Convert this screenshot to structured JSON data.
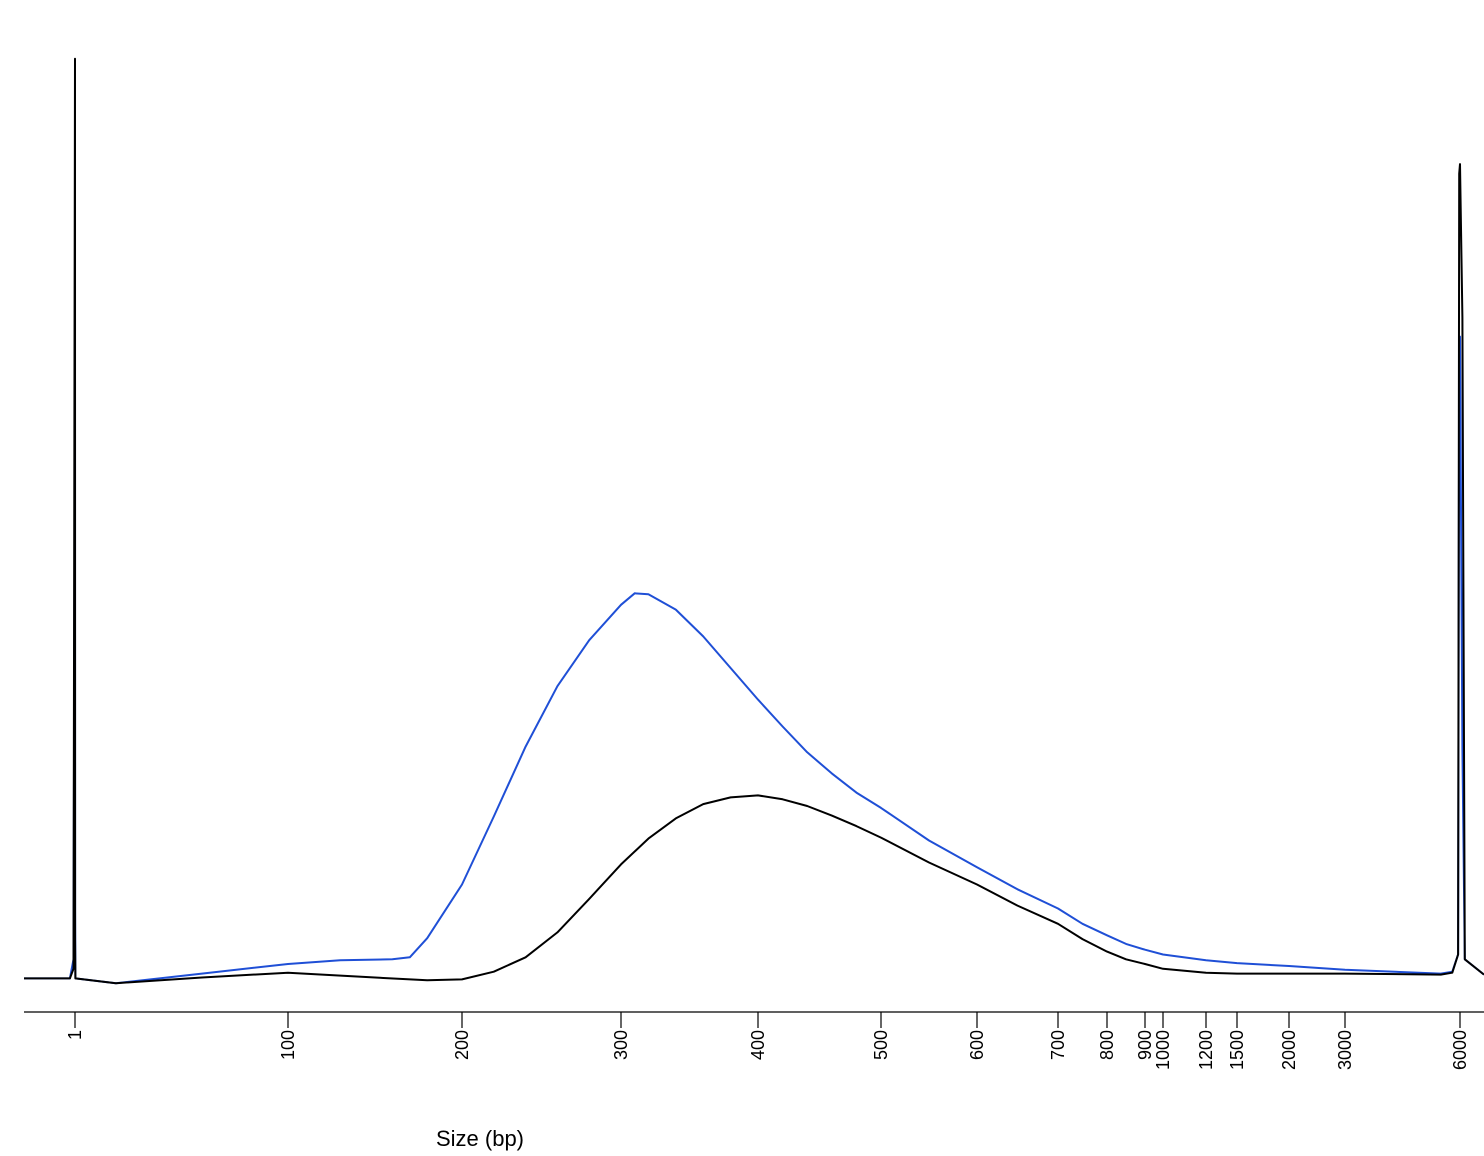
{
  "chart_data": {
    "type": "line",
    "title": "",
    "xlabel": "Size (bp)",
    "ylabel": "",
    "x_scale": "nonlinear (electrophoresis ladder)",
    "grid": false,
    "legend": "none",
    "x_ticks": [
      1,
      100,
      200,
      300,
      400,
      500,
      600,
      700,
      800,
      900,
      1000,
      1200,
      1500,
      2000,
      3000,
      6000
    ],
    "x_tick_labels": [
      "1",
      "100",
      "200",
      "300",
      "400",
      "500",
      "600",
      "700",
      "800",
      "900",
      "1000",
      "1200",
      "1500",
      "2000",
      "3000",
      "6000"
    ],
    "ylim": [
      0,
      100
    ],
    "series": [
      {
        "color": "#000000",
        "points": [
          [
            0,
            1
          ],
          [
            0.9,
            1
          ],
          [
            0.97,
            2
          ],
          [
            1,
            97
          ],
          [
            1.03,
            5
          ],
          [
            1.2,
            1
          ],
          [
            20,
            0.5
          ],
          [
            60,
            1.1
          ],
          [
            100,
            1.6
          ],
          [
            150,
            1.1
          ],
          [
            180,
            0.8
          ],
          [
            200,
            0.9
          ],
          [
            220,
            1.7
          ],
          [
            240,
            3.2
          ],
          [
            260,
            5.8
          ],
          [
            280,
            9.3
          ],
          [
            300,
            12.9
          ],
          [
            320,
            15.6
          ],
          [
            340,
            17.7
          ],
          [
            360,
            19.2
          ],
          [
            380,
            19.9
          ],
          [
            400,
            20.1
          ],
          [
            420,
            19.7
          ],
          [
            440,
            19.0
          ],
          [
            460,
            18.0
          ],
          [
            480,
            16.9
          ],
          [
            500,
            15.7
          ],
          [
            550,
            13.1
          ],
          [
            600,
            10.8
          ],
          [
            650,
            8.6
          ],
          [
            700,
            6.7
          ],
          [
            750,
            5.1
          ],
          [
            800,
            3.8
          ],
          [
            850,
            3.0
          ],
          [
            900,
            2.5
          ],
          [
            1000,
            2.0
          ],
          [
            1200,
            1.6
          ],
          [
            1500,
            1.5
          ],
          [
            2000,
            1.5
          ],
          [
            3000,
            1.5
          ],
          [
            5500,
            1.4
          ],
          [
            5800,
            1.6
          ],
          [
            5950,
            3.5
          ],
          [
            5980,
            85
          ],
          [
            6000,
            86
          ],
          [
            6030,
            70
          ],
          [
            6060,
            3
          ],
          [
            6300,
            1.4
          ]
        ]
      },
      {
        "color": "#1f4fd6",
        "points": [
          [
            0,
            1
          ],
          [
            0.9,
            1
          ],
          [
            0.97,
            3
          ],
          [
            1,
            64
          ],
          [
            1.03,
            8
          ],
          [
            1.2,
            1
          ],
          [
            20,
            0.5
          ],
          [
            60,
            1.5
          ],
          [
            100,
            2.5
          ],
          [
            130,
            2.9
          ],
          [
            160,
            3.0
          ],
          [
            170,
            3.2
          ],
          [
            180,
            5.2
          ],
          [
            200,
            10.8
          ],
          [
            220,
            17.9
          ],
          [
            240,
            25.2
          ],
          [
            260,
            31.5
          ],
          [
            280,
            36.3
          ],
          [
            300,
            40.0
          ],
          [
            310,
            41.2
          ],
          [
            320,
            41.1
          ],
          [
            340,
            39.5
          ],
          [
            360,
            36.7
          ],
          [
            380,
            33.4
          ],
          [
            400,
            30.1
          ],
          [
            420,
            27.3
          ],
          [
            440,
            24.6
          ],
          [
            460,
            22.4
          ],
          [
            480,
            20.4
          ],
          [
            500,
            18.8
          ],
          [
            550,
            15.4
          ],
          [
            600,
            12.6
          ],
          [
            650,
            10.3
          ],
          [
            700,
            8.3
          ],
          [
            750,
            6.7
          ],
          [
            800,
            5.5
          ],
          [
            850,
            4.6
          ],
          [
            900,
            4.0
          ],
          [
            1000,
            3.5
          ],
          [
            1200,
            2.9
          ],
          [
            1500,
            2.6
          ],
          [
            2000,
            2.3
          ],
          [
            3000,
            1.9
          ],
          [
            5500,
            1.5
          ],
          [
            5800,
            1.7
          ],
          [
            5950,
            3.5
          ],
          [
            5980,
            65
          ],
          [
            6000,
            68
          ],
          [
            6030,
            25
          ],
          [
            6060,
            3
          ],
          [
            6300,
            1.4
          ]
        ]
      }
    ]
  }
}
